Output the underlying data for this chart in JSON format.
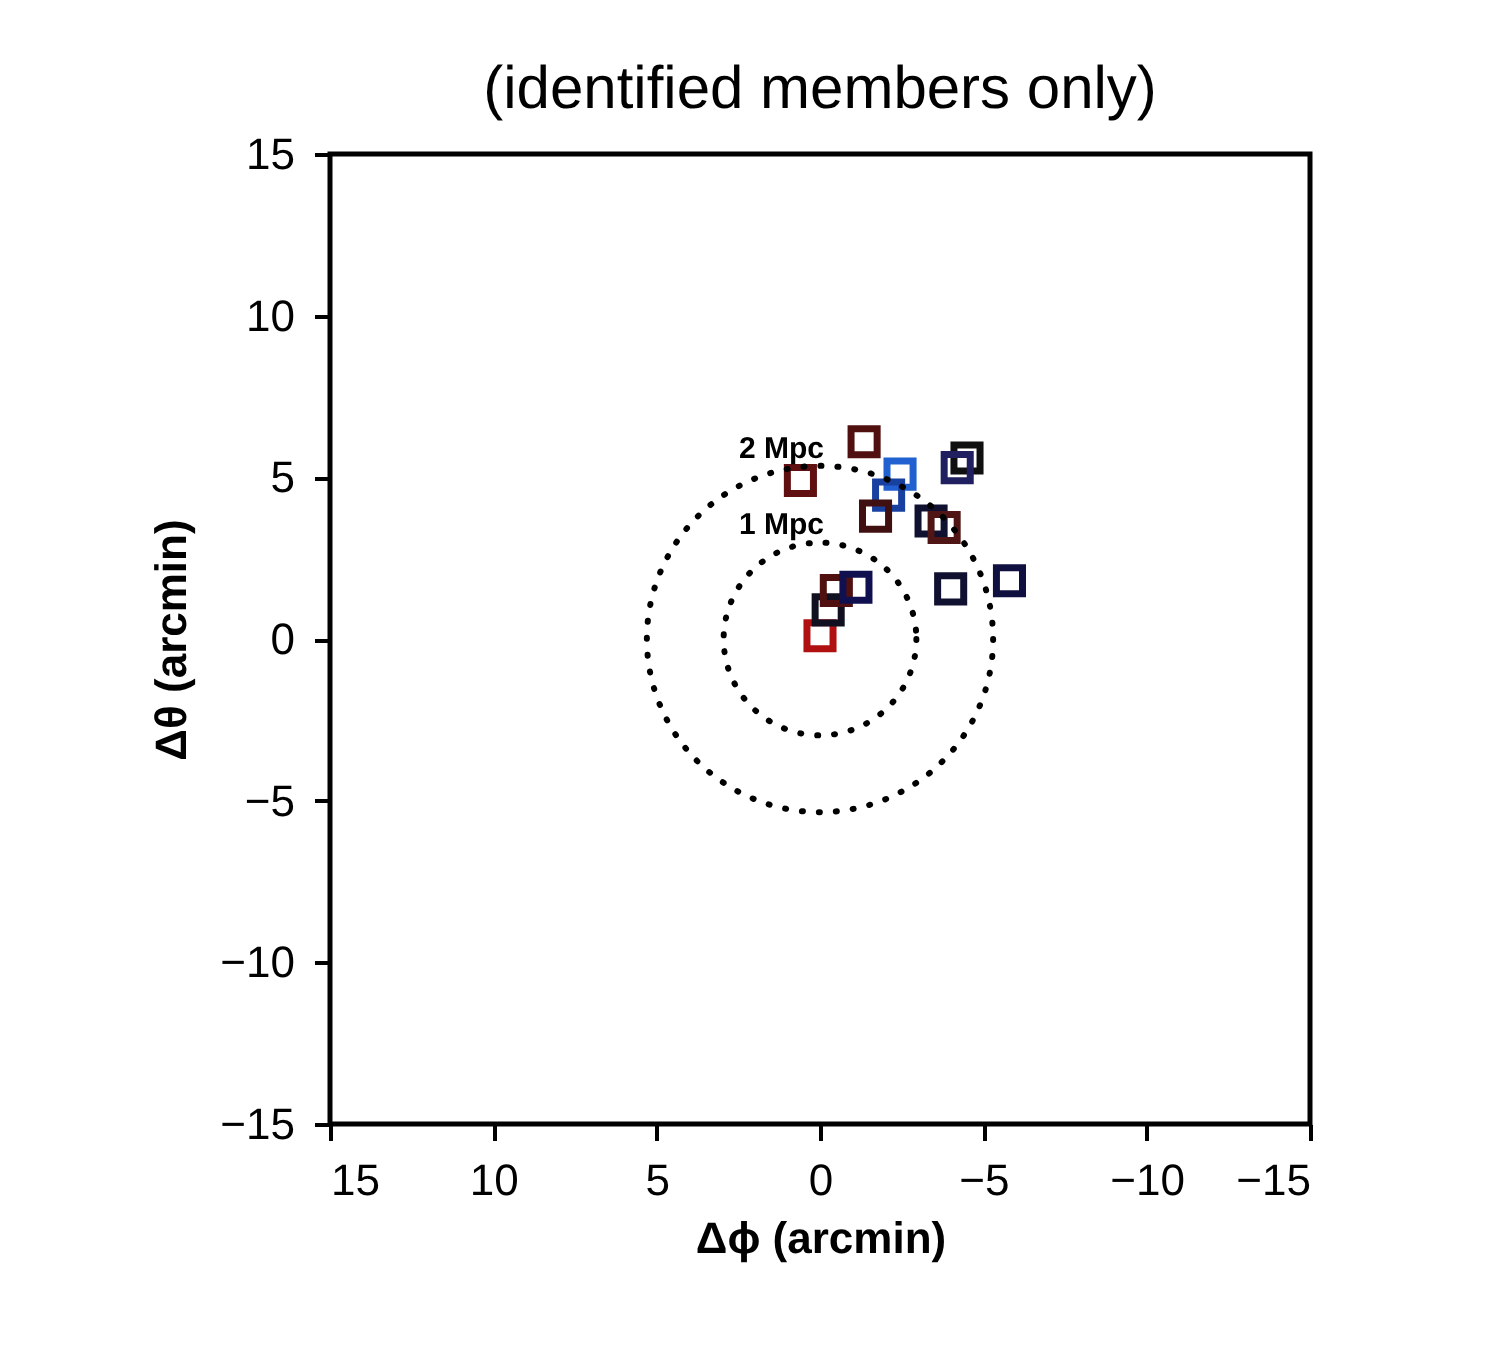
{
  "chart_data": {
    "type": "scatter",
    "title": "(identified members only)",
    "xlabel": "Δϕ (arcmin)",
    "ylabel": "Δθ (arcmin)",
    "xlim": [
      15,
      -15
    ],
    "ylim": [
      -15,
      15
    ],
    "xticks": [
      15,
      10,
      5,
      0,
      {
        "value": -5,
        "label": "−5"
      },
      {
        "value": -10,
        "label": "−10"
      },
      {
        "value": -15,
        "label": "−15"
      }
    ],
    "yticks": [
      {
        "value": -15,
        "label": "−15"
      },
      {
        "value": -10,
        "label": "−10"
      },
      {
        "value": -5,
        "label": "−5"
      },
      0,
      5,
      10,
      15
    ],
    "grid": false,
    "annotations": [
      "1 Mpc",
      "2 Mpc"
    ],
    "series": [
      {
        "marker": "square",
        "x": [
          0,
          -0.25,
          -0.5,
          -1.1,
          0.6,
          -1.35,
          -2.45,
          -2.1,
          -1.7,
          -3.4,
          -3.8,
          -4.5,
          -4.2,
          -4.0,
          -5.8
        ],
        "values": [
          0.1,
          0.9,
          1.5,
          1.6,
          4.9,
          6.1,
          5.1,
          4.45,
          3.8,
          3.65,
          3.45,
          5.6,
          5.3,
          1.55,
          1.8
        ],
        "colors": [
          "#b01010",
          "#101020",
          "#501010",
          "#101050",
          "#601010",
          "#501010",
          "#2060d0",
          "#1840a0",
          "#401010",
          "#101030",
          "#501515",
          "#101010",
          "#202060",
          "#101030",
          "#101040"
        ]
      }
    ]
  }
}
